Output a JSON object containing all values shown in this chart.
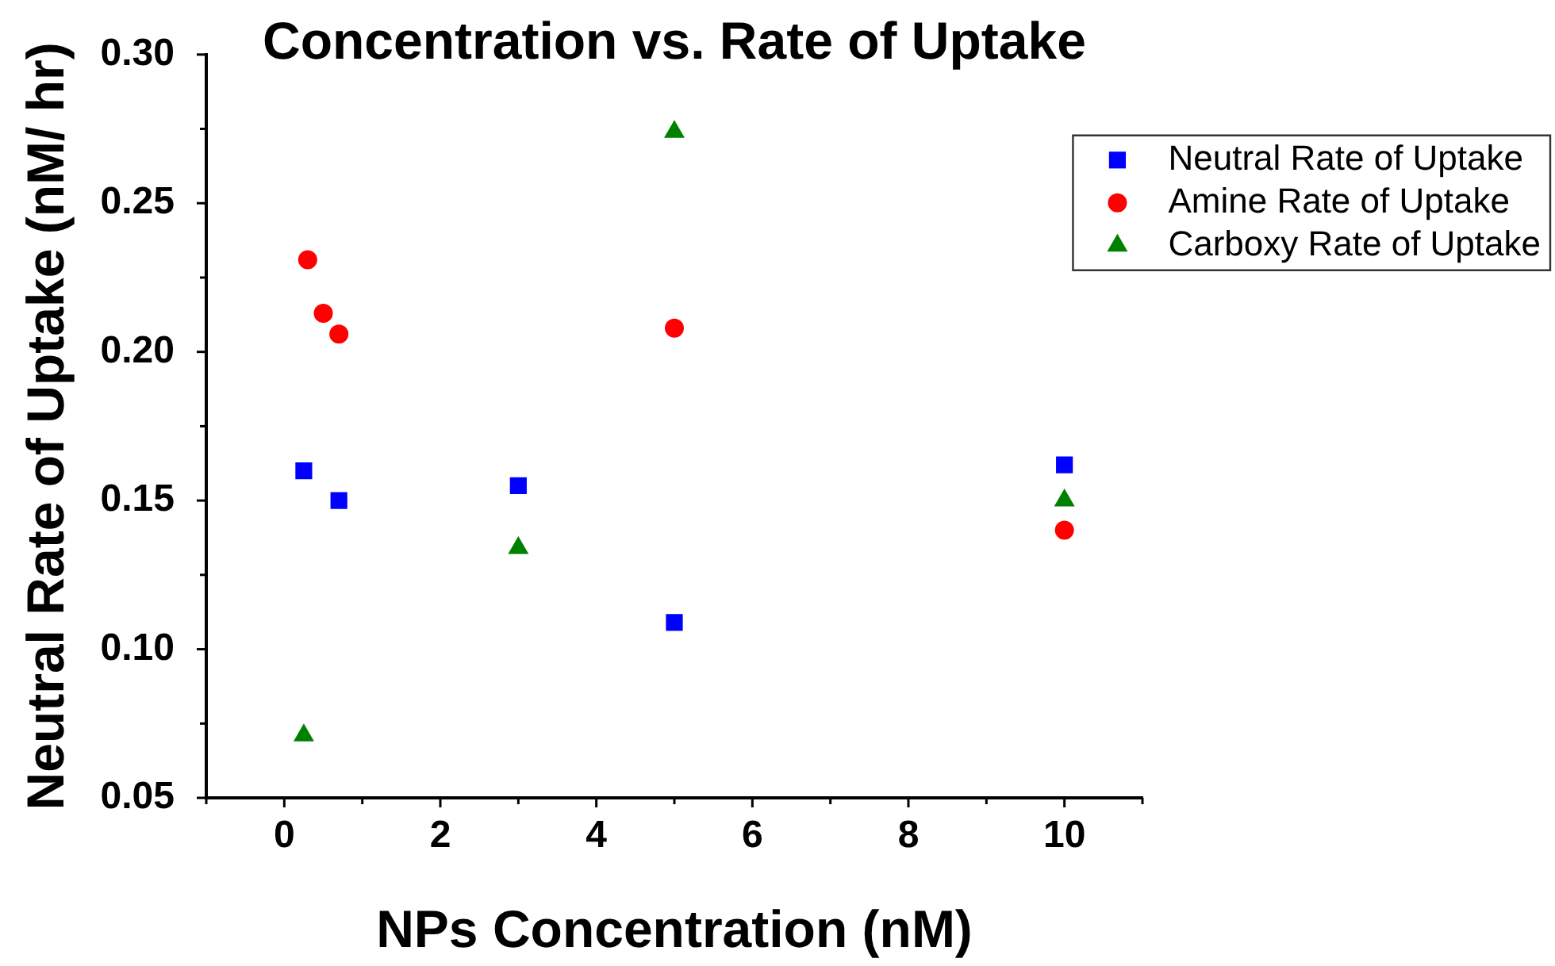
{
  "chart_data": {
    "type": "scatter",
    "title": "Concentration vs. Rate of Uptake",
    "xlabel": "NPs Concentration (nM)",
    "ylabel": "Neutral Rate of Uptake (nM/ hr)",
    "xlim": [
      -1,
      11
    ],
    "xticks": [
      {
        "value": -1,
        "label": null
      },
      0,
      {
        "value": 1,
        "label": null
      },
      2,
      {
        "value": 3,
        "label": null
      },
      4,
      {
        "value": 5,
        "label": null
      },
      6,
      {
        "value": 7,
        "label": null
      },
      8,
      {
        "value": 9,
        "label": null
      },
      10,
      {
        "value": 11,
        "label": null
      }
    ],
    "ylim": [
      0.05,
      0.3
    ],
    "yticks": [
      0.05,
      {
        "value": 0.075,
        "label": null
      },
      {
        "value": 0.1,
        "label": "0.10"
      },
      {
        "value": 0.125,
        "label": null
      },
      0.15,
      {
        "value": 0.175,
        "label": null
      },
      {
        "value": 0.2,
        "label": "0.20"
      },
      {
        "value": 0.225,
        "label": null
      },
      0.25,
      {
        "value": 0.275,
        "label": null
      },
      {
        "value": 0.3,
        "label": "0.30"
      }
    ],
    "series": [
      {
        "name": "Neutral Rate of Uptake",
        "color": "#0000ff",
        "marker": "square",
        "x": [
          0.25,
          0.7,
          3,
          5,
          10
        ],
        "values": [
          0.16,
          0.15,
          0.155,
          0.109,
          0.162
        ]
      },
      {
        "name": "Amine Rate of Uptake",
        "color": "#ff0000",
        "marker": "circle",
        "x": [
          0.3,
          0.5,
          0.7,
          5,
          10
        ],
        "values": [
          0.231,
          0.213,
          0.206,
          0.208,
          0.14
        ]
      },
      {
        "name": "Carboxy Rate of Uptake",
        "color": "#008000",
        "marker": "triangle",
        "x": [
          0.25,
          3,
          5,
          10
        ],
        "values": [
          0.071,
          0.134,
          0.274,
          0.15
        ]
      }
    ],
    "legend": "top right"
  }
}
